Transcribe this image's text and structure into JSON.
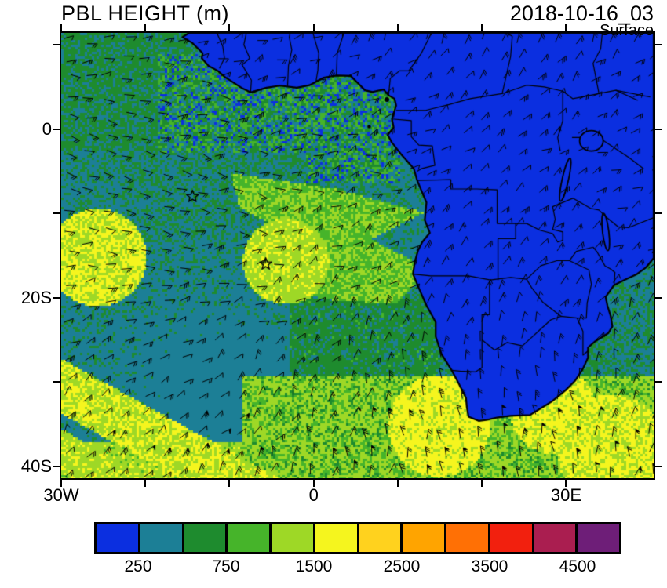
{
  "header": {
    "title": "PBL HEIGHT (m)",
    "datetime": "2018-10-16_03",
    "level": "Surface"
  },
  "axes": {
    "lat_labels": [
      {
        "text": "0",
        "lat": 0
      },
      {
        "text": "20S",
        "lat": -20
      },
      {
        "text": "40S",
        "lat": -40
      }
    ],
    "lon_labels": [
      {
        "text": "30W",
        "lon": -30
      },
      {
        "text": "0",
        "lon": 0
      },
      {
        "text": "30E",
        "lon": 30
      }
    ],
    "lat_ticks": [
      10,
      0,
      -10,
      -20,
      -30,
      -40
    ],
    "lon_ticks": [
      -30,
      -20,
      -10,
      0,
      10,
      20,
      30
    ]
  },
  "colorbar": {
    "colors": [
      "#0B2FE0",
      "#1C7F96",
      "#1E8B2E",
      "#46B42A",
      "#9ED826",
      "#F5F51E",
      "#FFD21E",
      "#FFA400",
      "#FF7005",
      "#F2200E",
      "#AA1E50",
      "#6E1E78"
    ],
    "labels": [
      {
        "text": "250",
        "boundary": 1
      },
      {
        "text": "750",
        "boundary": 3
      },
      {
        "text": "1500",
        "boundary": 5
      },
      {
        "text": "2500",
        "boundary": 7
      },
      {
        "text": "3500",
        "boundary": 9
      },
      {
        "text": "4500",
        "boundary": 11
      }
    ]
  },
  "chart_data": {
    "type": "heatmap",
    "title": "PBL HEIGHT (m)",
    "datetime": "2018-10-16_03",
    "level": "Surface",
    "units": "m",
    "region": "Africa and South Atlantic",
    "lon_range": [
      -30,
      40
    ],
    "lat_range": [
      -41,
      11
    ],
    "x_tick_labels": [
      "30W",
      "0",
      "30E"
    ],
    "y_tick_labels": [
      "0",
      "20S",
      "40S"
    ],
    "color_levels": [
      250,
      500,
      750,
      1000,
      1500,
      2000,
      2500,
      3000,
      3500,
      4000,
      4500
    ],
    "labeled_levels": [
      250,
      750,
      1500,
      2500,
      3500,
      4500
    ],
    "palette": [
      "#0B2FE0",
      "#1C7F96",
      "#1E8B2E",
      "#46B42A",
      "#9ED826",
      "#F5F51E",
      "#FFD21E",
      "#FFA400",
      "#FF7005",
      "#F2200E",
      "#AA1E50",
      "#6E1E78"
    ],
    "overlays": [
      "wind barbs",
      "coastlines",
      "country borders",
      "station star markers"
    ],
    "markers": [
      {
        "symbol": "star",
        "lon": -14.4,
        "lat": -8.0
      },
      {
        "symbol": "star",
        "lon": -5.7,
        "lat": -16.0
      }
    ],
    "summary": "PBL height below 250 m (blue) across the African continent at 03 UTC; 250-1000 m (teal/green) over the tropical South Atlantic; bands of 1000-2000 m (yellow-green/yellow) over the southwest and southern Atlantic"
  }
}
